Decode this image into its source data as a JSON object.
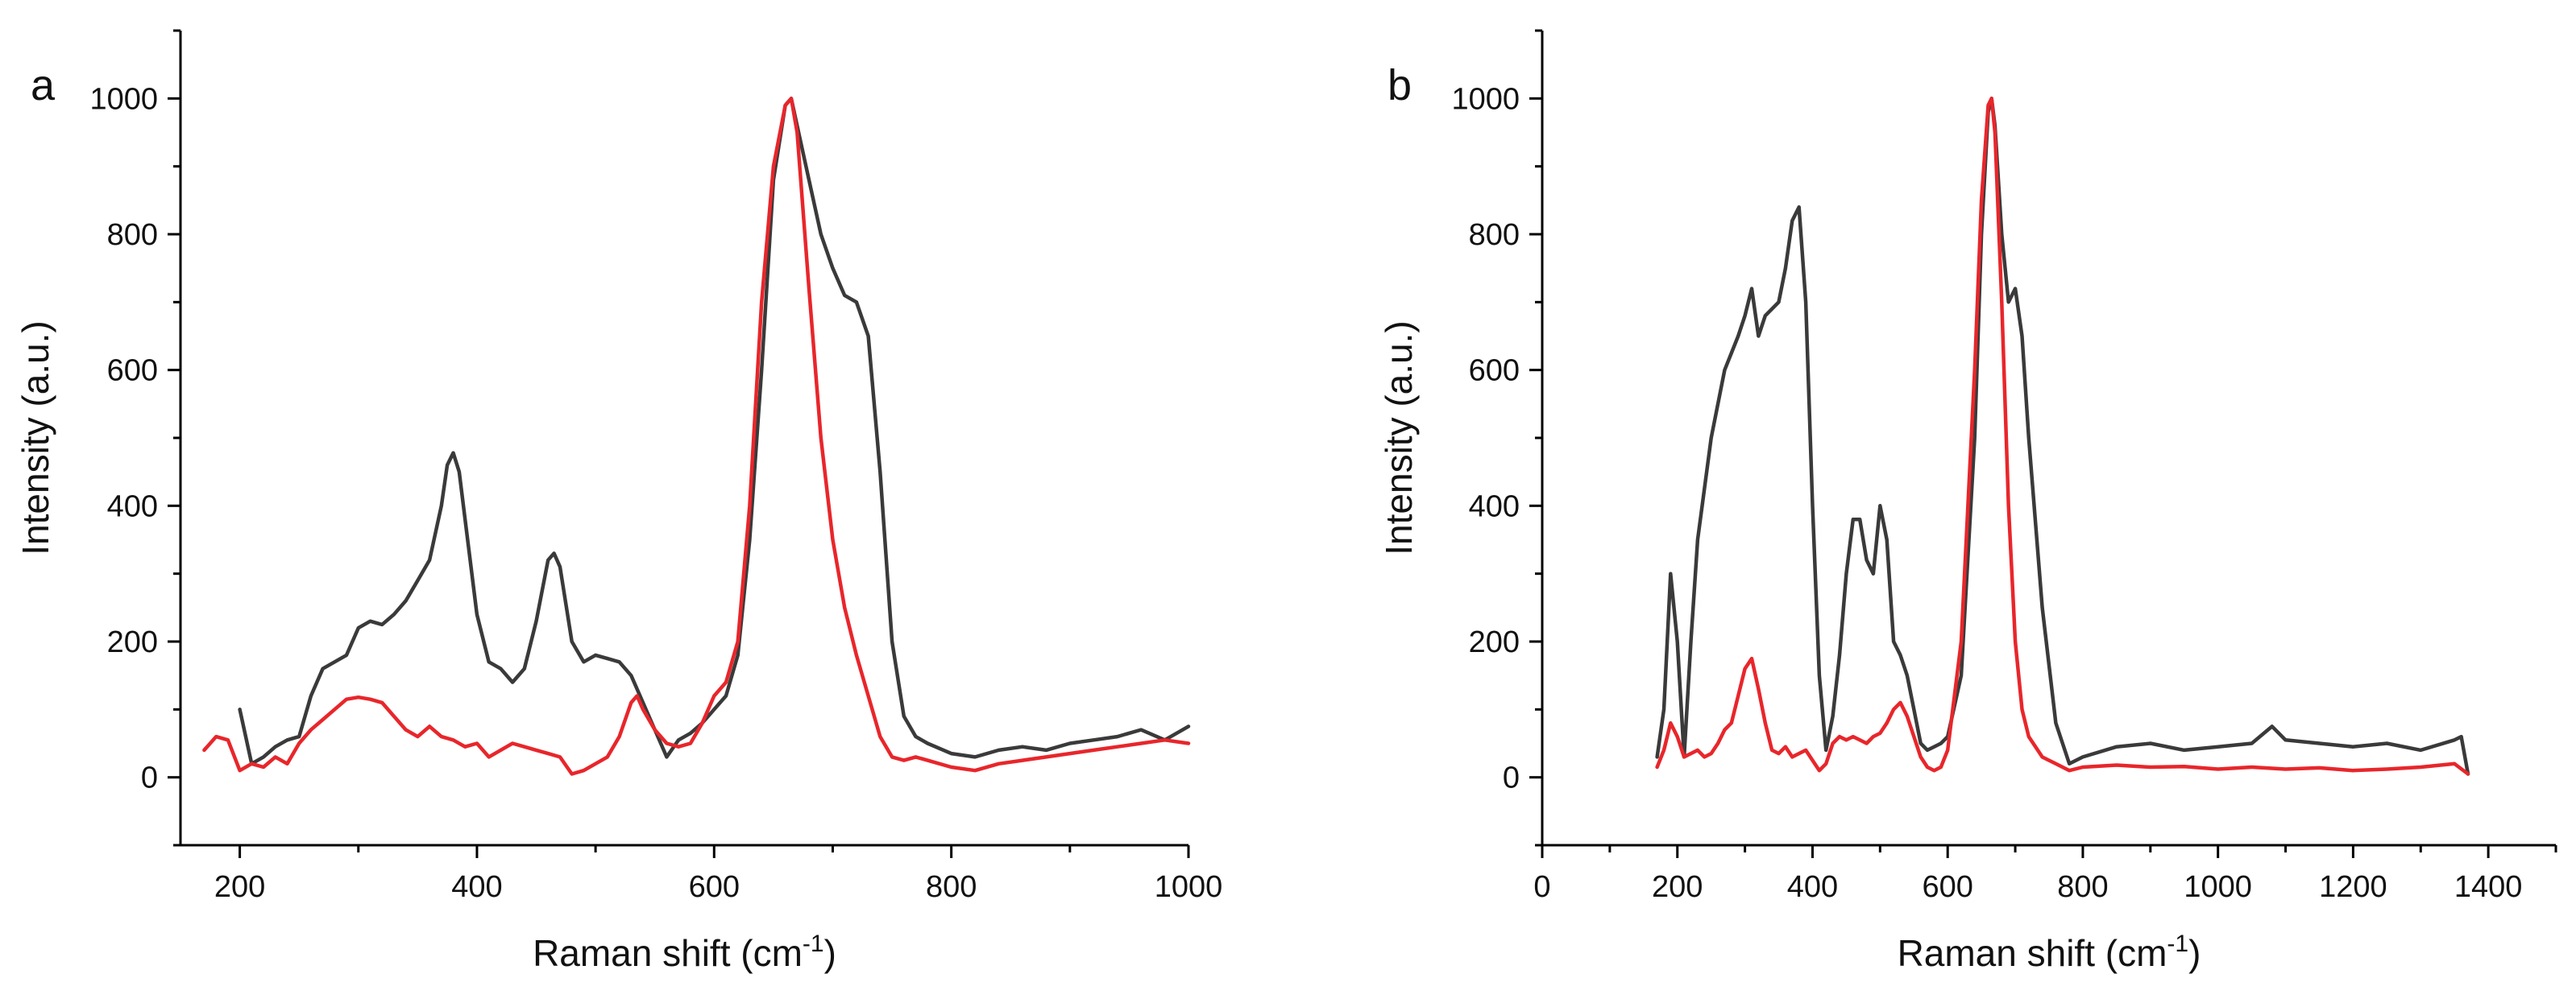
{
  "chart_data": [
    {
      "type": "line",
      "panel_label": "a",
      "xlabel": "Raman shift (cm",
      "xlabel_sup": "-1",
      "xlabel_end": ")",
      "ylabel": "Intensity (a.u.)",
      "xlim": [
        150,
        1000
      ],
      "ylim": [
        -100,
        1100
      ],
      "xticks": [
        200,
        400,
        600,
        800,
        1000
      ],
      "yticks": [
        0,
        200,
        400,
        600,
        800,
        1000
      ],
      "colors": {
        "series_1": "#3a3a3a",
        "series_2": "#e8262b"
      },
      "series": [
        {
          "name": "series_1",
          "x": [
            200,
            210,
            220,
            230,
            240,
            250,
            260,
            270,
            280,
            290,
            300,
            310,
            320,
            330,
            340,
            350,
            360,
            370,
            375,
            380,
            385,
            390,
            400,
            410,
            420,
            430,
            440,
            450,
            460,
            465,
            470,
            480,
            490,
            500,
            510,
            520,
            530,
            540,
            550,
            560,
            570,
            580,
            590,
            600,
            610,
            620,
            630,
            640,
            650,
            660,
            665,
            670,
            680,
            690,
            700,
            710,
            720,
            730,
            740,
            750,
            760,
            770,
            780,
            800,
            820,
            840,
            860,
            880,
            900,
            920,
            940,
            960,
            980,
            1000
          ],
          "values": [
            100,
            20,
            30,
            45,
            55,
            60,
            120,
            160,
            170,
            180,
            220,
            230,
            225,
            240,
            260,
            290,
            320,
            400,
            460,
            478,
            450,
            380,
            240,
            170,
            160,
            140,
            160,
            230,
            320,
            330,
            310,
            200,
            170,
            180,
            175,
            170,
            150,
            110,
            70,
            30,
            55,
            65,
            80,
            100,
            120,
            180,
            350,
            600,
            880,
            990,
            1000,
            960,
            880,
            800,
            750,
            710,
            700,
            650,
            450,
            200,
            90,
            60,
            50,
            35,
            30,
            40,
            45,
            40,
            50,
            55,
            60,
            70,
            55,
            75
          ]
        },
        {
          "name": "series_2",
          "x": [
            170,
            180,
            190,
            200,
            210,
            220,
            230,
            240,
            250,
            260,
            270,
            280,
            290,
            300,
            310,
            320,
            330,
            340,
            350,
            360,
            370,
            380,
            390,
            400,
            410,
            420,
            430,
            440,
            450,
            460,
            470,
            480,
            490,
            500,
            510,
            520,
            530,
            535,
            540,
            550,
            560,
            570,
            580,
            590,
            600,
            610,
            620,
            630,
            640,
            650,
            660,
            665,
            670,
            680,
            690,
            700,
            710,
            720,
            730,
            740,
            750,
            760,
            770,
            780,
            800,
            820,
            840,
            860,
            880,
            900,
            920,
            940,
            960,
            980,
            1000
          ],
          "values": [
            40,
            60,
            55,
            10,
            20,
            15,
            30,
            20,
            50,
            70,
            85,
            100,
            115,
            118,
            115,
            110,
            90,
            70,
            60,
            75,
            60,
            55,
            45,
            50,
            30,
            40,
            50,
            45,
            40,
            35,
            30,
            5,
            10,
            20,
            30,
            60,
            110,
            120,
            100,
            70,
            50,
            45,
            50,
            80,
            120,
            140,
            200,
            400,
            700,
            900,
            990,
            1000,
            950,
            720,
            500,
            350,
            250,
            180,
            120,
            60,
            30,
            25,
            30,
            25,
            15,
            10,
            20,
            25,
            30,
            35,
            40,
            45,
            50,
            55,
            50
          ]
        }
      ]
    },
    {
      "type": "line",
      "panel_label": "b",
      "xlabel": "Raman shift (cm",
      "xlabel_sup": "-1",
      "xlabel_end": ")",
      "ylabel": "Intensity (a.u.)",
      "xlim": [
        0,
        1500
      ],
      "ylim": [
        -100,
        1100
      ],
      "xticks": [
        0,
        200,
        400,
        600,
        800,
        1000,
        1200,
        1400
      ],
      "yticks": [
        0,
        200,
        400,
        600,
        800,
        1000
      ],
      "colors": {
        "series_1": "#3a3a3a",
        "series_2": "#e8262b"
      },
      "series": [
        {
          "name": "series_1",
          "x": [
            170,
            180,
            190,
            200,
            210,
            220,
            230,
            250,
            270,
            290,
            300,
            310,
            320,
            330,
            340,
            350,
            360,
            370,
            380,
            390,
            400,
            410,
            420,
            430,
            440,
            450,
            460,
            470,
            480,
            490,
            500,
            510,
            520,
            530,
            540,
            550,
            560,
            570,
            580,
            590,
            600,
            620,
            640,
            650,
            660,
            665,
            670,
            680,
            690,
            700,
            710,
            720,
            740,
            760,
            780,
            800,
            850,
            900,
            950,
            1000,
            1050,
            1080,
            1100,
            1150,
            1200,
            1250,
            1300,
            1350,
            1360,
            1370
          ],
          "values": [
            30,
            100,
            300,
            200,
            30,
            200,
            350,
            500,
            600,
            650,
            680,
            720,
            650,
            680,
            690,
            700,
            750,
            820,
            840,
            700,
            400,
            150,
            40,
            90,
            180,
            300,
            380,
            380,
            320,
            300,
            400,
            350,
            200,
            180,
            150,
            100,
            50,
            40,
            45,
            50,
            60,
            150,
            500,
            800,
            980,
            1000,
            960,
            800,
            700,
            720,
            650,
            500,
            250,
            80,
            20,
            30,
            45,
            50,
            40,
            45,
            50,
            75,
            55,
            50,
            45,
            50,
            40,
            55,
            60,
            5
          ]
        },
        {
          "name": "series_2",
          "x": [
            170,
            180,
            190,
            200,
            210,
            220,
            230,
            240,
            250,
            260,
            270,
            280,
            290,
            300,
            310,
            320,
            330,
            340,
            350,
            360,
            370,
            380,
            390,
            400,
            410,
            420,
            430,
            440,
            450,
            460,
            470,
            480,
            490,
            500,
            510,
            520,
            530,
            540,
            550,
            560,
            570,
            580,
            590,
            600,
            620,
            640,
            650,
            660,
            665,
            670,
            680,
            690,
            700,
            710,
            720,
            740,
            760,
            780,
            800,
            850,
            900,
            950,
            1000,
            1050,
            1100,
            1150,
            1200,
            1250,
            1300,
            1350,
            1370
          ],
          "values": [
            15,
            40,
            80,
            60,
            30,
            35,
            40,
            30,
            35,
            50,
            70,
            80,
            120,
            160,
            175,
            130,
            80,
            40,
            35,
            45,
            30,
            35,
            40,
            25,
            10,
            20,
            50,
            60,
            55,
            60,
            55,
            50,
            60,
            65,
            80,
            100,
            110,
            90,
            60,
            30,
            15,
            10,
            15,
            40,
            200,
            600,
            850,
            990,
            1000,
            950,
            700,
            400,
            200,
            100,
            60,
            30,
            20,
            10,
            15,
            18,
            15,
            16,
            12,
            15,
            12,
            14,
            10,
            12,
            15,
            20,
            5
          ]
        }
      ]
    }
  ]
}
